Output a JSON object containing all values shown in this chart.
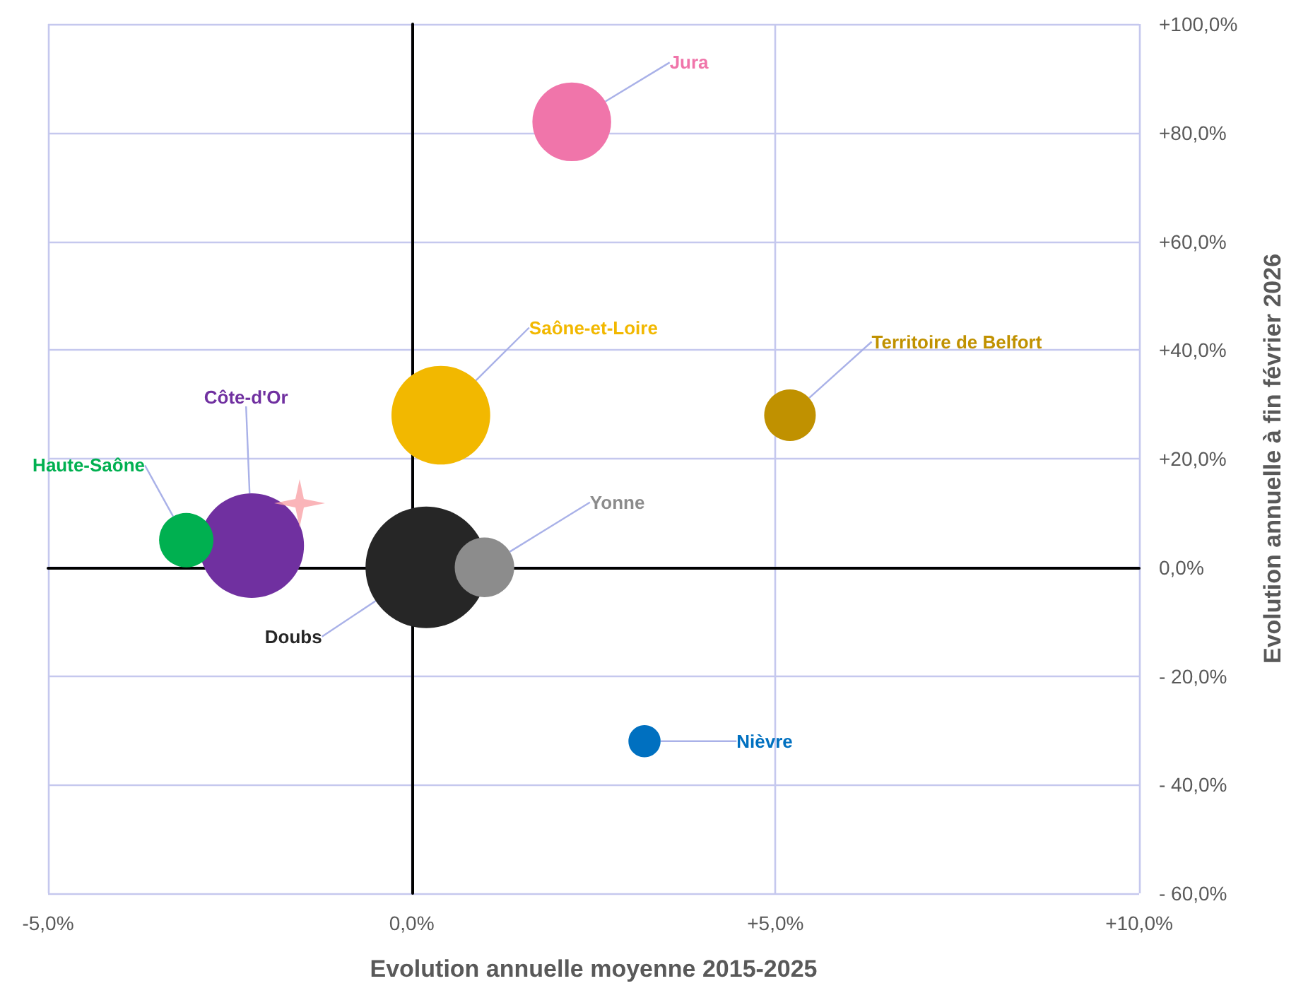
{
  "chart_data": {
    "type": "bubble",
    "xlabel": "Evolution annuelle moyenne 2015-2025",
    "ylabel": "Evolution annuelle à fin février 2026",
    "series": [
      {
        "name": "Jura",
        "color": "#f075aa",
        "x": [
          2.2
        ],
        "values": [
          82
        ],
        "sizes": [
          0.42
        ]
      },
      {
        "name": "Saône-et-Loire",
        "color": "#f2b800",
        "x": [
          0.4
        ],
        "values": [
          28
        ],
        "sizes": [
          0.66
        ]
      },
      {
        "name": "Territoire de Belfort",
        "color": "#c09100",
        "x": [
          5.2
        ],
        "values": [
          28
        ],
        "sizes": [
          0.18
        ]
      },
      {
        "name": "Côte-d'Or",
        "color": "#7030a0",
        "x": [
          -2.2
        ],
        "values": [
          4
        ],
        "sizes": [
          0.74
        ]
      },
      {
        "name": "Haute-Saône",
        "color": "#00b050",
        "x": [
          -3.1
        ],
        "values": [
          5
        ],
        "sizes": [
          0.2
        ]
      },
      {
        "name": "Doubs",
        "color": "#262626",
        "x": [
          0.2
        ],
        "values": [
          0
        ],
        "sizes": [
          1
        ]
      },
      {
        "name": "Yonne",
        "color": "#8c8c8c",
        "x": [
          1.0
        ],
        "values": [
          0
        ],
        "sizes": [
          0.24
        ]
      },
      {
        "name": "Nièvre",
        "color": "#0070c0",
        "x": [
          3.2
        ],
        "values": [
          -32
        ],
        "sizes": [
          0.07
        ]
      }
    ],
    "xlim": [
      -5,
      10
    ],
    "xticks": [
      {
        "value": -5,
        "label": "-5,0%"
      },
      {
        "value": 0,
        "label": "0,0%"
      },
      {
        "value": 5,
        "label": "+5,0%"
      },
      {
        "value": 10,
        "label": "+10,0%"
      }
    ],
    "ylim": [
      -60,
      100
    ],
    "yticks": [
      {
        "value": -60,
        "label": "- 60,0%"
      },
      {
        "value": -40,
        "label": "- 40,0%"
      },
      {
        "value": -20,
        "label": "- 20,0%"
      },
      {
        "value": 0,
        "label": "0,0%"
      },
      {
        "value": 20,
        "label": "+20,0%"
      },
      {
        "value": 40,
        "label": "+40,0%"
      },
      {
        "value": 60,
        "label": "+60,0%"
      },
      {
        "value": 80,
        "label": "+80,0%"
      },
      {
        "value": 100,
        "label": "+100,0%"
      }
    ],
    "grid": true,
    "legend": false
  }
}
